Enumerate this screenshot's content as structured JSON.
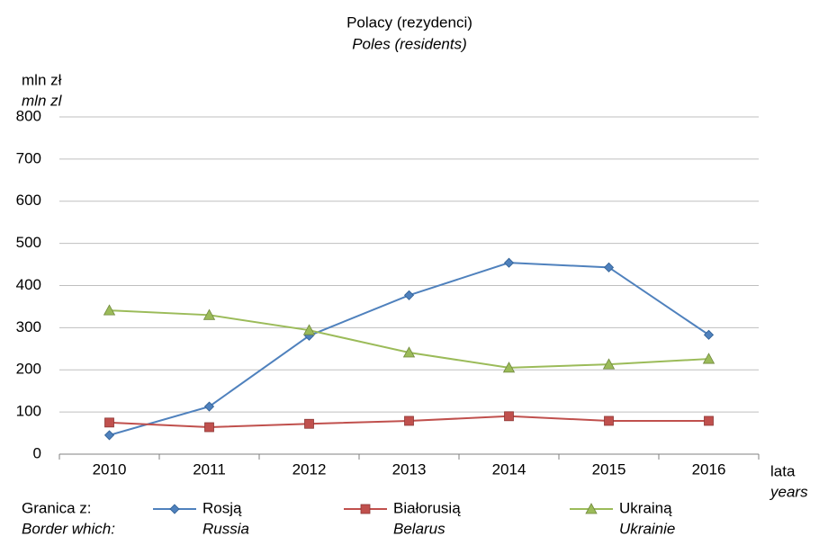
{
  "chart_data": {
    "type": "line",
    "title": "Polacy (rezydenci)",
    "subtitle": "Poles (residents)",
    "y_label": "mln zł",
    "y_label_en": "mln zl",
    "x_label": "lata",
    "x_label_en": "years",
    "legend_title": "Granica z:",
    "legend_title_en": "Border which:",
    "categories": [
      "2010",
      "2011",
      "2012",
      "2013",
      "2014",
      "2015",
      "2016"
    ],
    "series": [
      {
        "name": "Rosją",
        "name_en": "Russia",
        "color": "#4f81bd",
        "marker": "diamond",
        "values": [
          45,
          113,
          281,
          377,
          454,
          443,
          283
        ]
      },
      {
        "name": "Białorusią",
        "name_en": "Belarus",
        "color": "#c0504d",
        "marker": "square",
        "values": [
          75,
          64,
          72,
          79,
          90,
          79,
          79
        ]
      },
      {
        "name": "Ukrainą",
        "name_en": "Ukrainie",
        "color": "#9bbb59",
        "marker": "triangle",
        "values": [
          341,
          330,
          294,
          241,
          205,
          213,
          226
        ]
      }
    ],
    "ylim": [
      0,
      800
    ],
    "yticks": [
      0,
      100,
      200,
      300,
      400,
      500,
      600,
      700,
      800
    ],
    "grid": true
  }
}
